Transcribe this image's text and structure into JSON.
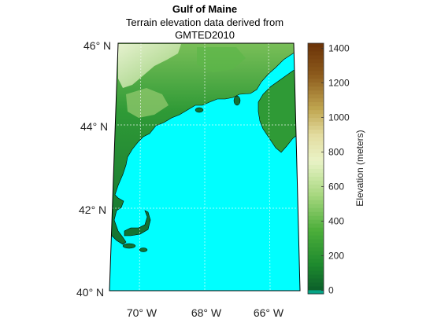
{
  "title": "Gulf of Maine",
  "subtitle_lines": [
    "Terrain elevation data derived from",
    "GMTED2010"
  ],
  "map": {
    "lat_labels": [
      "46° N",
      "44° N",
      "42° N",
      "40° N"
    ],
    "lat_values": [
      46,
      44,
      42,
      40
    ],
    "lon_labels": [
      "70° W",
      "68° W",
      "66° W"
    ],
    "lon_values": [
      -70,
      -68,
      -66
    ],
    "water_color": "#00ffff",
    "frame_color": "#000000",
    "graticule_color": "#ffffff"
  },
  "colorbar": {
    "label": "Elevation (meters)",
    "ticks": [
      0,
      200,
      400,
      600,
      800,
      1000,
      1200,
      1400
    ],
    "range": [
      -20,
      1430
    ],
    "stops": [
      {
        "value": -20,
        "color": "#00ffff"
      },
      {
        "value": 0,
        "color": "#0b5e2a"
      },
      {
        "value": 150,
        "color": "#1e8a2e"
      },
      {
        "value": 350,
        "color": "#4cae3a"
      },
      {
        "value": 550,
        "color": "#a6d77e"
      },
      {
        "value": 750,
        "color": "#e9f3c6"
      },
      {
        "value": 900,
        "color": "#e3dca0"
      },
      {
        "value": 1050,
        "color": "#c0a650"
      },
      {
        "value": 1250,
        "color": "#8c5a1c"
      },
      {
        "value": 1430,
        "color": "#6b3208"
      }
    ]
  }
}
